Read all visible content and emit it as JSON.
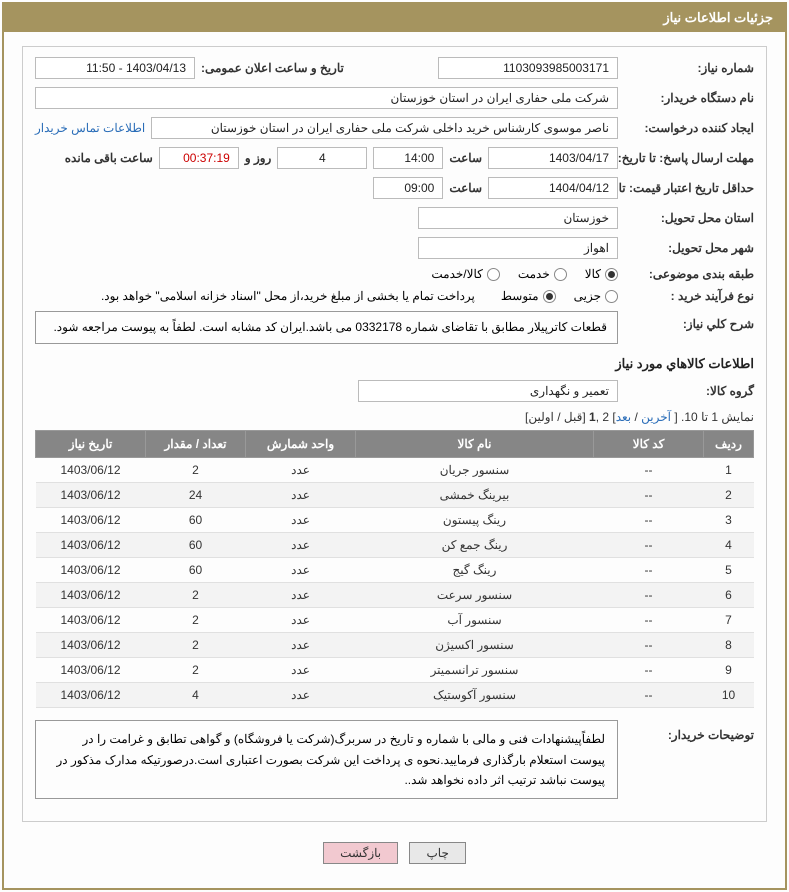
{
  "header": {
    "title": "جزئیات اطلاعات نیاز"
  },
  "form": {
    "need_no_label": "شماره نیاز:",
    "need_no": "1103093985003171",
    "announce_label": "تاریخ و ساعت اعلان عمومی:",
    "announce": "1403/04/13 - 11:50",
    "buyer_org_label": "نام دستگاه خریدار:",
    "buyer_org": "شرکت ملی حفاری ایران در استان خوزستان",
    "requester_label": "ایجاد کننده درخواست:",
    "requester": "ناصر موسوی کارشناس خرید داخلی شرکت ملی حفاری ایران در استان خوزستان",
    "contact_link": "اطلاعات تماس خریدار",
    "deadline_label": "مهلت ارسال پاسخ: تا تاریخ:",
    "deadline_date": "1403/04/17",
    "time_label": "ساعت",
    "deadline_time": "14:00",
    "days_count": "4",
    "days_word": "روز و",
    "countdown": "00:37:19",
    "remain_label": "ساعت باقی مانده",
    "validity_label": "حداقل تاریخ اعتبار قیمت: تا تاریخ:",
    "validity_date": "1404/04/12",
    "validity_time": "09:00",
    "province_label": "استان محل تحویل:",
    "province": "خوزستان",
    "city_label": "شهر محل تحویل:",
    "city": "اهواز",
    "category_label": "طبقه بندی موضوعی:",
    "cat_goods": "کالا",
    "cat_service": "خدمت",
    "cat_both": "کالا/خدمت",
    "process_label": "نوع فرآیند خرید :",
    "proc_partial": "جزیی",
    "proc_medium": "متوسط",
    "process_note": "پرداخت تمام یا بخشی از مبلغ خرید،از محل \"اسناد خزانه اسلامی\" خواهد بود.",
    "desc_label": "شرح کلي نياز:",
    "desc_text": "قطعات کاترپیلار مطابق با تقاضای شماره 0332178 می باشد.ایران کد مشابه است. لطفاً به پیوست مراجعه شود.",
    "goods_info_title": "اطلاعات کالاهاي مورد نياز",
    "group_label": "گروه کالا:",
    "group_value": "تعمیر و نگهداری",
    "pagination_prefix": "نمایش 1 تا 10. [ ",
    "pagination_last": "آخرین",
    "pagination_sep1": " / ",
    "pagination_next": "بعد",
    "pagination_mid": "] 2 ,",
    "pagination_one": "1",
    "pagination_suffix": " [قبل / اولین]",
    "buyer_notes_label": "توضیحات خریدار:",
    "buyer_notes": "لطفاًپیشنهادات فنی و مالی با شماره و تاریخ در سربرگ(شرکت یا فروشگاه) و گواهی تطابق و غرامت را در پیوست استعلام بارگذاری فرمایید.نحوه ی پرداخت این شرکت بصورت اعتباری است.درصورتیکه مدارک مذکور در پیوست نباشد ترتیب اثر داده نخواهد شد.."
  },
  "table": {
    "headers": {
      "row": "ردیف",
      "code": "کد کالا",
      "name": "نام کالا",
      "unit": "واحد شمارش",
      "qty": "تعداد / مقدار",
      "date": "تاریخ نیاز"
    },
    "rows": [
      {
        "n": "1",
        "code": "--",
        "name": "سنسور جریان",
        "unit": "عدد",
        "qty": "2",
        "date": "1403/06/12"
      },
      {
        "n": "2",
        "code": "--",
        "name": "بیرینگ خمشی",
        "unit": "عدد",
        "qty": "24",
        "date": "1403/06/12"
      },
      {
        "n": "3",
        "code": "--",
        "name": "رینگ پیستون",
        "unit": "عدد",
        "qty": "60",
        "date": "1403/06/12"
      },
      {
        "n": "4",
        "code": "--",
        "name": "رینگ جمع کن",
        "unit": "عدد",
        "qty": "60",
        "date": "1403/06/12"
      },
      {
        "n": "5",
        "code": "--",
        "name": "رینگ گیج",
        "unit": "عدد",
        "qty": "60",
        "date": "1403/06/12"
      },
      {
        "n": "6",
        "code": "--",
        "name": "سنسور سرعت",
        "unit": "عدد",
        "qty": "2",
        "date": "1403/06/12"
      },
      {
        "n": "7",
        "code": "--",
        "name": "سنسور آب",
        "unit": "عدد",
        "qty": "2",
        "date": "1403/06/12"
      },
      {
        "n": "8",
        "code": "--",
        "name": "سنسور اکسیژن",
        "unit": "عدد",
        "qty": "2",
        "date": "1403/06/12"
      },
      {
        "n": "9",
        "code": "--",
        "name": "سنسور ترانسمیتر",
        "unit": "عدد",
        "qty": "2",
        "date": "1403/06/12"
      },
      {
        "n": "10",
        "code": "--",
        "name": "سنسور آکوستیک",
        "unit": "عدد",
        "qty": "4",
        "date": "1403/06/12"
      }
    ]
  },
  "buttons": {
    "print": "چاپ",
    "back": "بازگشت"
  },
  "colors": {
    "brand": "#a5945f",
    "table_header": "#868686",
    "link": "#2a6db8",
    "back_btn": "#f2c9d0"
  }
}
